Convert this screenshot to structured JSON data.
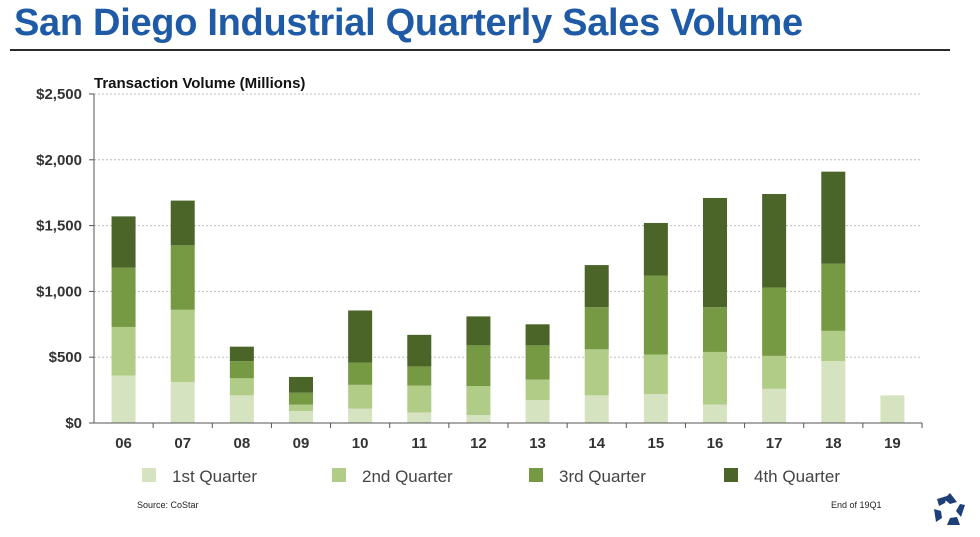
{
  "header": {
    "title": "San Diego Industrial Quarterly Sales Volume"
  },
  "chart_data": {
    "type": "bar",
    "stacked": true,
    "title": "Transaction Volume (Millions)",
    "xlabel": "",
    "ylabel": "",
    "ylim": [
      0,
      2500
    ],
    "ytick_values": [
      0,
      500,
      1000,
      1500,
      2000,
      2500
    ],
    "ytick_labels": [
      "$0",
      "$500",
      "$1,000",
      "$1,500",
      "$2,000",
      "$2,500"
    ],
    "grid": true,
    "legend_position": "bottom",
    "categories": [
      "06",
      "07",
      "08",
      "09",
      "10",
      "11",
      "12",
      "13",
      "14",
      "15",
      "16",
      "17",
      "18",
      "19"
    ],
    "series": [
      {
        "name": "1st Quarter",
        "color": "#d6e3c0",
        "values": [
          360,
          310,
          210,
          90,
          110,
          80,
          60,
          175,
          210,
          220,
          140,
          260,
          470,
          210
        ]
      },
      {
        "name": "2nd Quarter",
        "color": "#b1cc86",
        "values": [
          370,
          550,
          130,
          50,
          180,
          205,
          220,
          155,
          350,
          300,
          400,
          250,
          230,
          0
        ]
      },
      {
        "name": "3rd Quarter",
        "color": "#769944",
        "values": [
          450,
          490,
          130,
          90,
          170,
          145,
          310,
          260,
          320,
          600,
          340,
          520,
          510,
          0
        ]
      },
      {
        "name": "4th Quarter",
        "color": "#4b6428",
        "values": [
          390,
          340,
          110,
          120,
          395,
          240,
          220,
          160,
          320,
          400,
          830,
          710,
          700,
          0
        ]
      }
    ]
  },
  "footer": {
    "source": "Source: CoStar",
    "note": "End of 19Q1"
  }
}
